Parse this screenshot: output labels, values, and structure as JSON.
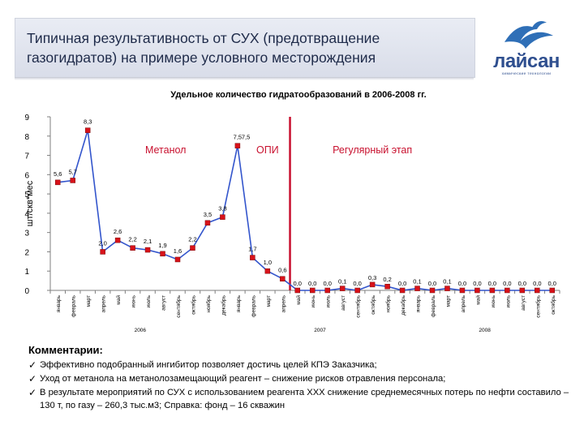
{
  "header": {
    "title": "Типичная результативность от СУХ (предотвращение газогидратов) на примере условного месторождения"
  },
  "logo": {
    "icon": "seagull-icon",
    "name": "лайсан",
    "subtitle": "химические технологии"
  },
  "chart_data": {
    "type": "line",
    "title": "Удельное количество гидратообразований в 2006-2008 гг.",
    "ylabel": "шт/скв*мес",
    "ylim": [
      0,
      9
    ],
    "yticks": [
      "0",
      "1",
      "2",
      "3",
      "4",
      "5",
      "6",
      "7",
      "8",
      "9"
    ],
    "categories": [
      "январь",
      "февраль",
      "март",
      "апрель",
      "май",
      "июнь",
      "июль",
      "август",
      "сентябрь",
      "октябрь",
      "ноябрь",
      "декабрь",
      "январь",
      "февраль",
      "март",
      "апрель",
      "май",
      "июнь",
      "июль",
      "август",
      "сентябрь",
      "октябрь",
      "ноябрь",
      "декабрь",
      "январь",
      "февраль",
      "март",
      "апрель",
      "май",
      "июнь",
      "июль",
      "август",
      "сентябрь",
      "октябрь"
    ],
    "years": [
      {
        "label": "2006",
        "center_index": 5.5
      },
      {
        "label": "2007",
        "center_index": 17.5
      },
      {
        "label": "2008",
        "center_index": 28.5
      }
    ],
    "values": [
      5.6,
      5.7,
      8.3,
      2.0,
      2.6,
      2.2,
      2.1,
      1.9,
      1.6,
      2.2,
      3.5,
      3.8,
      7.5,
      1.7,
      1.0,
      0.6,
      0.0,
      0.0,
      0.0,
      0.1,
      0.0,
      0.3,
      0.2,
      0.0,
      0.1,
      0.0,
      0.1,
      0.0,
      0.0,
      0.0,
      0.0,
      0.0,
      0.0,
      0.0
    ],
    "data_labels": [
      "5,6",
      "5,7",
      "8,3",
      "2,0",
      "2,6",
      "2,2",
      "2,1",
      "1,9",
      "1,6",
      "2,2",
      "3,5",
      "3,8",
      "7,5",
      "1,7",
      "1,0",
      "0,6",
      "0,0",
      "0,0",
      "0,0",
      "0,1",
      "0,0",
      "0,3",
      "0,2",
      "0,0",
      "0,1",
      "0,0",
      "0,1",
      "0,0",
      "0,0",
      "0,0",
      "0,0",
      "0,0",
      "0,0",
      "0,0"
    ],
    "extra_label": {
      "text": "7,5",
      "after_index": 12
    },
    "series_color": "#3355cc",
    "marker_color": "#d8121a",
    "divider_color": "#c8102e",
    "divider_after_index": 15.5,
    "phase_labels": [
      {
        "text": "Метанол",
        "position": "between-2006"
      },
      {
        "text": "ОПИ",
        "position": "between-divider"
      },
      {
        "text": "Регулярный этап",
        "position": "right"
      }
    ],
    "grid": false,
    "legend": "none"
  },
  "comments": {
    "title": "Комментарии:",
    "items": [
      "Эффективно подобранный ингибитор позволяет достичь целей КПЭ Заказчика;",
      "Уход от метанола на метанолозамещающий реагент – снижение рисков отравления персонала;",
      "В результате мероприятий по СУХ с использованием реагента XXX снижение среднемесячных потерь по нефти составило – 130 т, по газу – 260,3 тыс.м3; Справка: фонд – 16 скважин"
    ],
    "check_icon": "check-icon"
  }
}
